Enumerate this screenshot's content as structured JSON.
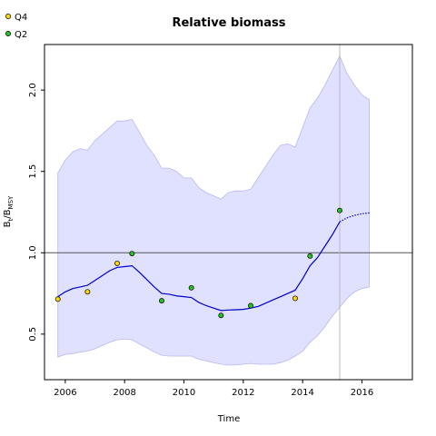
{
  "chart_data": {
    "type": "line",
    "title": "Relative biomass",
    "xlabel": "Time",
    "ylabel_main": "B",
    "ylabel_sub_t": "t",
    "ylabel_slash": "/B",
    "ylabel_sub_msy": "MSY",
    "xlim": [
      2005.3,
      2017.7
    ],
    "ylim": [
      0.22,
      2.28
    ],
    "x_ticks": [
      2006,
      2008,
      2010,
      2012,
      2014,
      2016
    ],
    "x_tick_labels": [
      "2006",
      "2008",
      "2010",
      "2012",
      "2014",
      "2016"
    ],
    "y_ticks": [
      0.5,
      1.0,
      1.5,
      2.0
    ],
    "y_tick_labels": [
      "0.5",
      "1.0",
      "1.5",
      "2.0"
    ],
    "reference_hline": 1.0,
    "reference_vline": 2015.25,
    "legend": {
      "placement": "top-left-outside",
      "entries": [
        {
          "label": "Q4",
          "color": "#FFD700"
        },
        {
          "label": "Q2",
          "color": "#22C322"
        }
      ]
    },
    "series": [
      {
        "role": "estimate",
        "color": "#0000CC",
        "x": [
          2005.75,
          2006.0,
          2006.25,
          2006.5,
          2006.75,
          2007.0,
          2007.25,
          2007.5,
          2007.75,
          2008.0,
          2008.25,
          2008.5,
          2008.75,
          2009.0,
          2009.25,
          2009.5,
          2009.75,
          2010.0,
          2010.25,
          2010.5,
          2010.75,
          2011.0,
          2011.25,
          2011.5,
          2011.75,
          2012.0,
          2012.25,
          2012.5,
          2012.75,
          2013.0,
          2013.25,
          2013.5,
          2013.75,
          2014.0,
          2014.25,
          2014.5,
          2014.75,
          2015.0,
          2015.25
        ],
        "y": [
          0.73,
          0.76,
          0.78,
          0.79,
          0.8,
          0.83,
          0.86,
          0.89,
          0.91,
          0.915,
          0.92,
          0.88,
          0.835,
          0.79,
          0.75,
          0.745,
          0.735,
          0.73,
          0.725,
          0.695,
          0.675,
          0.66,
          0.645,
          0.648,
          0.65,
          0.652,
          0.66,
          0.67,
          0.69,
          0.71,
          0.73,
          0.75,
          0.77,
          0.84,
          0.92,
          0.97,
          1.04,
          1.11,
          1.19
        ]
      },
      {
        "role": "projection",
        "color": "#0000CC",
        "x": [
          2015.25,
          2015.5,
          2015.75,
          2016.0,
          2016.25
        ],
        "y": [
          1.19,
          1.215,
          1.23,
          1.24,
          1.245
        ]
      }
    ],
    "confidence_band": {
      "color": "#E0E0FF",
      "x": [
        2005.75,
        2006.0,
        2006.25,
        2006.5,
        2006.75,
        2007.0,
        2007.25,
        2007.5,
        2007.75,
        2008.0,
        2008.25,
        2008.5,
        2008.75,
        2009.0,
        2009.25,
        2009.5,
        2009.75,
        2010.0,
        2010.25,
        2010.5,
        2010.75,
        2011.0,
        2011.25,
        2011.5,
        2011.75,
        2012.0,
        2012.25,
        2012.5,
        2012.75,
        2013.0,
        2013.25,
        2013.5,
        2013.75,
        2014.0,
        2014.25,
        2014.5,
        2014.75,
        2015.0,
        2015.25,
        2015.5,
        2015.75,
        2016.0,
        2016.25
      ],
      "upper": [
        1.49,
        1.57,
        1.62,
        1.64,
        1.63,
        1.69,
        1.73,
        1.77,
        1.81,
        1.81,
        1.82,
        1.74,
        1.66,
        1.6,
        1.52,
        1.52,
        1.5,
        1.46,
        1.46,
        1.4,
        1.37,
        1.35,
        1.33,
        1.37,
        1.38,
        1.38,
        1.39,
        1.46,
        1.53,
        1.6,
        1.66,
        1.67,
        1.65,
        1.77,
        1.89,
        1.95,
        2.03,
        2.12,
        2.21,
        2.1,
        2.03,
        1.97,
        1.94
      ],
      "lower": [
        0.36,
        0.375,
        0.38,
        0.39,
        0.395,
        0.41,
        0.43,
        0.45,
        0.465,
        0.47,
        0.465,
        0.44,
        0.415,
        0.39,
        0.37,
        0.365,
        0.365,
        0.365,
        0.365,
        0.345,
        0.335,
        0.325,
        0.315,
        0.31,
        0.31,
        0.315,
        0.32,
        0.315,
        0.315,
        0.315,
        0.325,
        0.34,
        0.365,
        0.395,
        0.45,
        0.49,
        0.545,
        0.61,
        0.665,
        0.72,
        0.76,
        0.78,
        0.79
      ]
    },
    "observations": [
      {
        "series": "Q4",
        "color": "#FFD700",
        "points": [
          [
            2005.75,
            0.715
          ],
          [
            2006.75,
            0.76
          ],
          [
            2007.75,
            0.935
          ],
          [
            2013.75,
            0.72
          ]
        ]
      },
      {
        "series": "Q2",
        "color": "#22C322",
        "points": [
          [
            2008.25,
            0.995
          ],
          [
            2009.25,
            0.705
          ],
          [
            2010.25,
            0.785
          ],
          [
            2011.25,
            0.615
          ],
          [
            2012.25,
            0.675
          ],
          [
            2014.25,
            0.98
          ],
          [
            2015.25,
            1.26
          ]
        ]
      }
    ]
  }
}
